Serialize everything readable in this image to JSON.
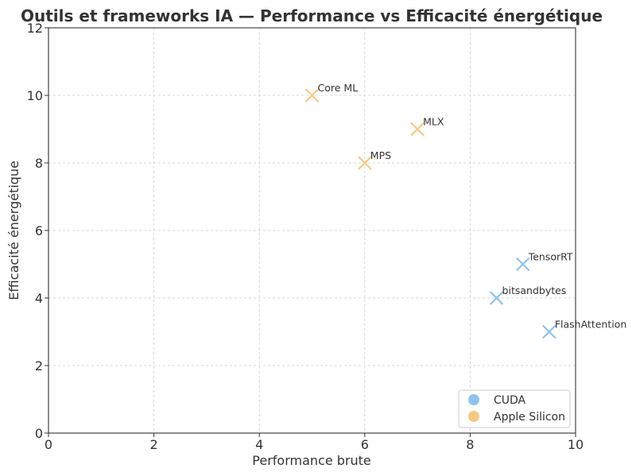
{
  "chart_data": {
    "type": "scatter",
    "title": "Outils et frameworks IA — Performance vs Efficacité énergétique",
    "xlabel": "Performance brute",
    "ylabel": "Efficacité énergétique",
    "xlim": [
      0,
      10
    ],
    "ylim": [
      0,
      12
    ],
    "xticks": [
      0,
      2,
      4,
      6,
      8,
      10
    ],
    "yticks": [
      0,
      2,
      4,
      6,
      8,
      10,
      12
    ],
    "grid": true,
    "legend_position": "lower-right",
    "marker": "x",
    "series": [
      {
        "name": "CUDA",
        "color": "#8ec4ec",
        "points": [
          {
            "label": "TensorRT",
            "x": 9,
            "y": 5
          },
          {
            "label": "bitsandbytes",
            "x": 8.5,
            "y": 4
          },
          {
            "label": "FlashAttention",
            "x": 9.5,
            "y": 3
          }
        ]
      },
      {
        "name": "Apple Silicon",
        "color": "#f6c982",
        "points": [
          {
            "label": "Core ML",
            "x": 5,
            "y": 10
          },
          {
            "label": "MLX",
            "x": 7,
            "y": 9
          },
          {
            "label": "MPS",
            "x": 6,
            "y": 8
          }
        ]
      }
    ]
  }
}
